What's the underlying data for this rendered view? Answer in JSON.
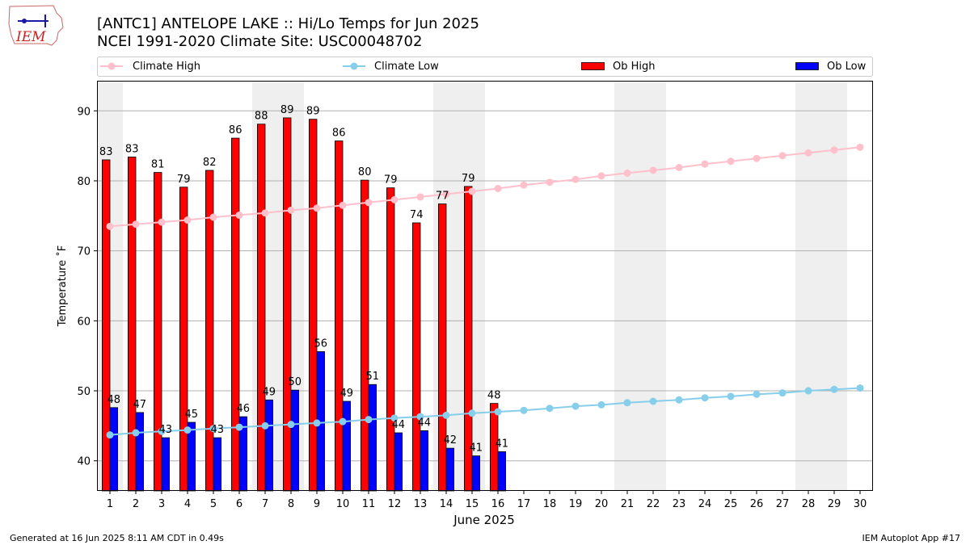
{
  "header": {
    "title_line1": "[ANTC1] ANTELOPE LAKE :: Hi/Lo Temps for Jun 2025",
    "title_line2": "NCEI 1991-2020 Climate Site: USC00048702",
    "logo_text": "IEM"
  },
  "footer": {
    "generated": "Generated at 16 Jun 2025 8:11 AM CDT in 0.49s",
    "app": "IEM Autoplot App #17"
  },
  "colors": {
    "climate_high": "#ffc0cb",
    "climate_low": "#87ceeb",
    "ob_high": "#ff0000",
    "ob_low": "#0000ff",
    "weekend_shade": "#efefef",
    "grid": "#b0b0b0"
  },
  "chart_data": {
    "type": "bar",
    "xlabel": "June 2025",
    "ylabel": "Temperature ˚F",
    "ylim": [
      35.7,
      94.3
    ],
    "xlim": [
      0.5,
      30.5
    ],
    "y_ticks": [
      40,
      50,
      60,
      70,
      80,
      90
    ],
    "days": [
      1,
      2,
      3,
      4,
      5,
      6,
      7,
      8,
      9,
      10,
      11,
      12,
      13,
      14,
      15,
      16,
      17,
      18,
      19,
      20,
      21,
      22,
      23,
      24,
      25,
      26,
      27,
      28,
      29,
      30
    ],
    "shaded_days": [
      1,
      7,
      8,
      14,
      15,
      21,
      22,
      28,
      29
    ],
    "grid": "horizontal",
    "legend_position": "top",
    "legend": [
      "Climate High",
      "Climate Low",
      "Ob High",
      "Ob Low"
    ],
    "series": [
      {
        "name": "Climate High",
        "kind": "line",
        "values": [
          73.5,
          73.8,
          74.1,
          74.4,
          74.8,
          75.1,
          75.4,
          75.8,
          76.1,
          76.5,
          76.9,
          77.3,
          77.7,
          78.1,
          78.5,
          78.9,
          79.4,
          79.8,
          80.2,
          80.7,
          81.1,
          81.5,
          81.9,
          82.4,
          82.8,
          83.2,
          83.6,
          84.0,
          84.4,
          84.8
        ]
      },
      {
        "name": "Climate Low",
        "kind": "line",
        "values": [
          43.7,
          44.0,
          44.2,
          44.4,
          44.6,
          44.8,
          45.0,
          45.2,
          45.4,
          45.6,
          45.9,
          46.1,
          46.3,
          46.5,
          46.8,
          47.0,
          47.2,
          47.5,
          47.8,
          48.0,
          48.3,
          48.5,
          48.7,
          49.0,
          49.2,
          49.5,
          49.7,
          50.0,
          50.2,
          50.4
        ]
      },
      {
        "name": "Ob High",
        "kind": "bar",
        "values": [
          83,
          83.4,
          81.2,
          79.1,
          81.5,
          86.1,
          88.1,
          89,
          88.8,
          85.7,
          80.1,
          79,
          74,
          76.7,
          79.2,
          48.2
        ],
        "labels": [
          "83",
          "83",
          "81",
          "79",
          "82",
          "86",
          "88",
          "89",
          "89",
          "86",
          "80",
          "79",
          "74",
          "77",
          "79",
          "48"
        ]
      },
      {
        "name": "Ob Low",
        "kind": "bar",
        "values": [
          47.6,
          46.9,
          43.3,
          45.5,
          43.3,
          46.3,
          48.7,
          50.1,
          55.6,
          48.5,
          50.9,
          44,
          44.3,
          41.8,
          40.7,
          41.3
        ],
        "labels": [
          "48",
          "47",
          "43",
          "45",
          "43",
          "46",
          "49",
          "50",
          "56",
          "49",
          "51",
          "44",
          "44",
          "42",
          "41",
          "41"
        ]
      }
    ]
  }
}
